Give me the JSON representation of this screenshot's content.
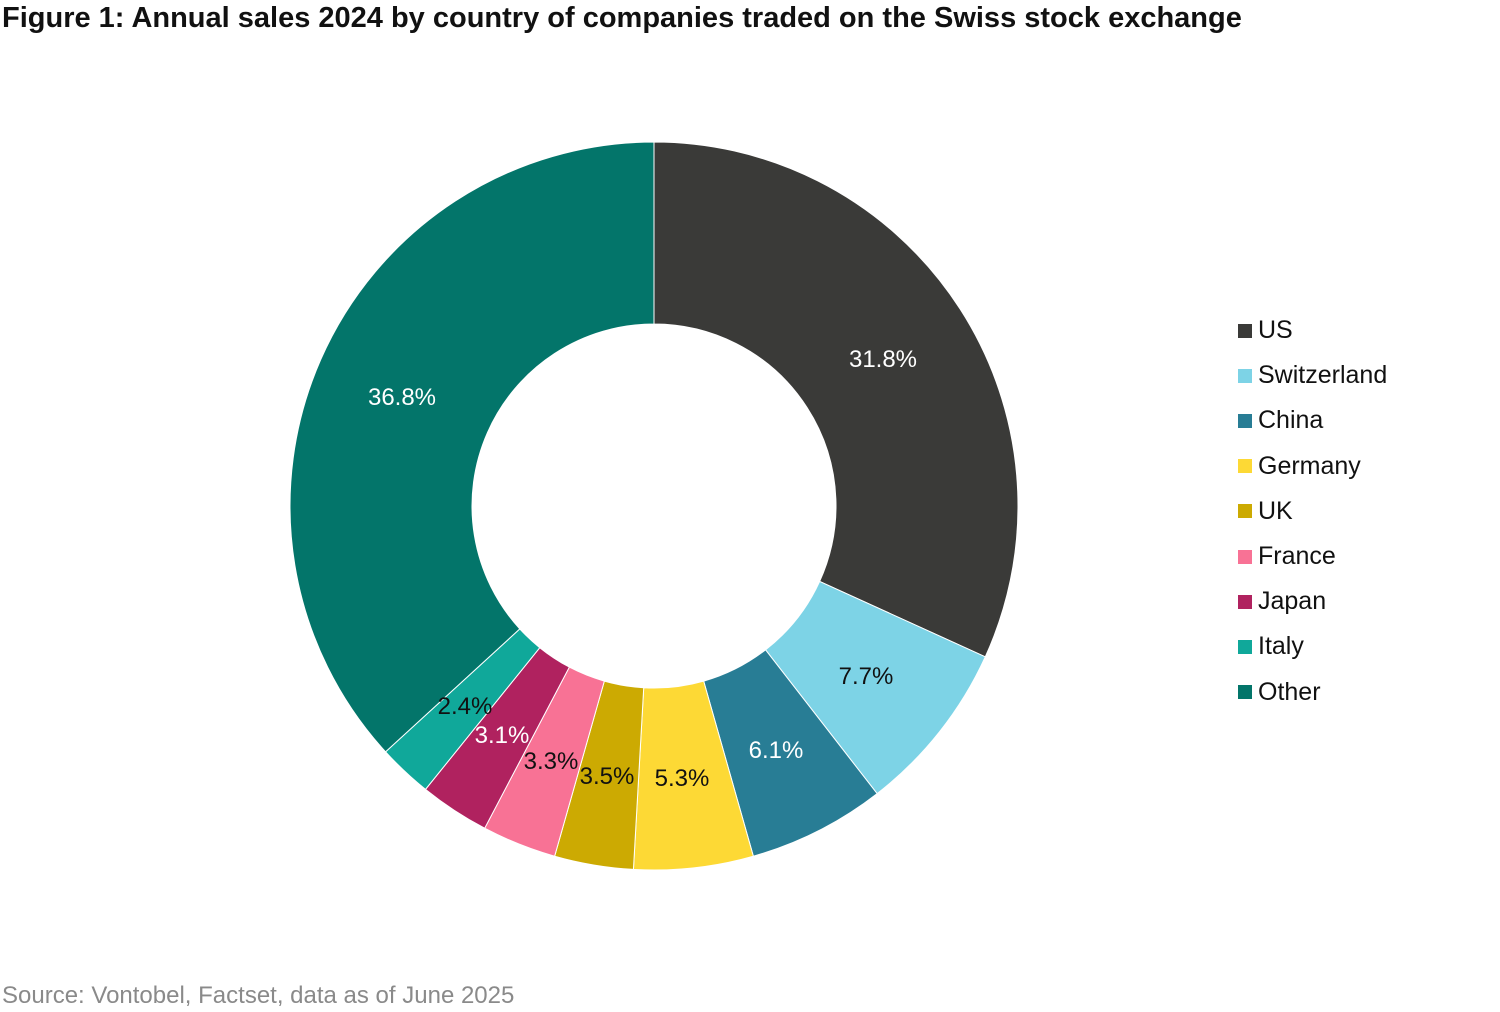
{
  "chart_data": {
    "type": "pie",
    "variant": "donut",
    "title": "Figure 1: Annual sales 2024 by country of companies traded on the Swiss stock exchange",
    "source": "Source: Vontobel, Factset, data as of June 2025",
    "legend_position": "right",
    "unit": "%",
    "slices": [
      {
        "name": "US",
        "value": 31.8,
        "label": "31.8%",
        "color": "#3a3a38",
        "label_color": "#ffffff"
      },
      {
        "name": "Switzerland",
        "value": 7.7,
        "label": "7.7%",
        "color": "#7dd3e6",
        "label_color": "#111111"
      },
      {
        "name": "China",
        "value": 6.1,
        "label": "6.1%",
        "color": "#287d95",
        "label_color": "#ffffff"
      },
      {
        "name": "Germany",
        "value": 5.3,
        "label": "5.3%",
        "color": "#fdd935",
        "label_color": "#111111"
      },
      {
        "name": "UK",
        "value": 3.5,
        "label": "3.5%",
        "color": "#ccaa02",
        "label_color": "#111111"
      },
      {
        "name": "France",
        "value": 3.3,
        "label": "3.3%",
        "color": "#f87295",
        "label_color": "#111111"
      },
      {
        "name": "Japan",
        "value": 3.1,
        "label": "3.1%",
        "color": "#b0225f",
        "label_color": "#ffffff"
      },
      {
        "name": "Italy",
        "value": 2.4,
        "label": "2.4%",
        "color": "#10a89a",
        "label_color": "#111111"
      },
      {
        "name": "Other",
        "value": 36.8,
        "label": "36.8%",
        "color": "#03756a",
        "label_color": "#ffffff"
      }
    ]
  }
}
